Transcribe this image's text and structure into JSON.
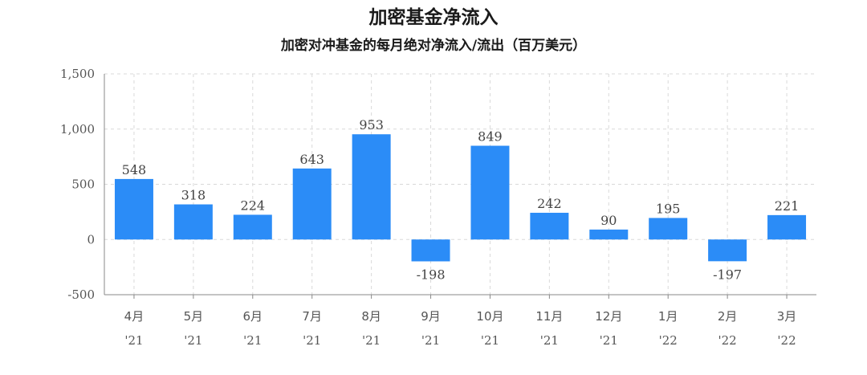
{
  "chart_data": {
    "type": "bar",
    "title": "加密基金净流入",
    "subtitle": "加密对冲基金的每月绝对净流入/流出（百万美元）",
    "categories": [
      "4月",
      "5月",
      "6月",
      "7月",
      "8月",
      "9月",
      "10月",
      "11月",
      "12月",
      "1月",
      "2月",
      "3月"
    ],
    "category_years": [
      "'21",
      "'21",
      "'21",
      "'21",
      "'21",
      "'21",
      "'21",
      "'21",
      "'21",
      "'22",
      "'22",
      "'22"
    ],
    "values": [
      548,
      318,
      224,
      643,
      953,
      -198,
      849,
      242,
      90,
      195,
      -197,
      221
    ],
    "ylim": [
      -500,
      1500
    ],
    "yticks": [
      1500,
      1000,
      500,
      0,
      -500
    ],
    "ytick_labels": [
      "1,500",
      "1,000",
      "500",
      "0",
      "-500"
    ],
    "grid": true,
    "bar_color": "#2b8cf7",
    "grid_color": "#d9d9d9"
  }
}
